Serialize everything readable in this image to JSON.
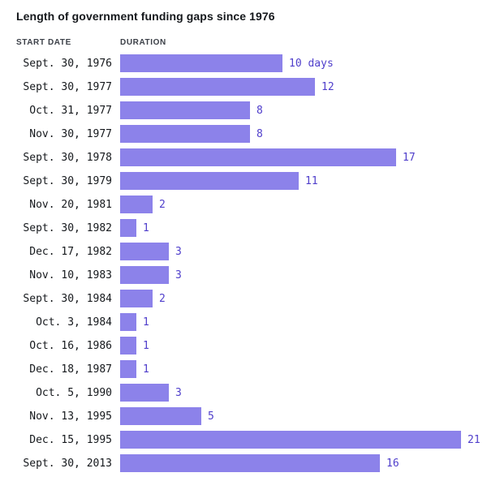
{
  "title": "Length of government funding gaps since 1976",
  "columns": {
    "start_date": "START DATE",
    "duration": "DURATION"
  },
  "colors": {
    "bar": "#8c82ea",
    "value_label": "#4f3ecb",
    "title_text": "#15181c",
    "header_text": "#3c4048",
    "date_text": "#15181c",
    "background": "#ffffff"
  },
  "chart_data": {
    "type": "bar",
    "orientation": "horizontal",
    "title": "Length of government funding gaps since 1976",
    "xlabel": "DURATION",
    "ylabel": "START DATE",
    "unit": "days",
    "xlim": [
      0,
      21.5
    ],
    "grid": false,
    "legend": false,
    "categories": [
      "Sept. 30, 1976",
      "Sept. 30, 1977",
      "Oct. 31, 1977",
      "Nov. 30, 1977",
      "Sept. 30, 1978",
      "Sept. 30, 1979",
      "Nov. 20, 1981",
      "Sept. 30, 1982",
      "Dec. 17, 1982",
      "Nov. 10, 1983",
      "Sept. 30, 1984",
      "Oct. 3, 1984",
      "Oct. 16, 1986",
      "Dec. 18, 1987",
      "Oct. 5, 1990",
      "Nov. 13, 1995",
      "Dec. 15, 1995",
      "Sept. 30, 2013"
    ],
    "values": [
      10,
      12,
      8,
      8,
      17,
      11,
      2,
      1,
      3,
      3,
      2,
      1,
      1,
      1,
      3,
      5,
      21,
      16
    ],
    "value_labels": [
      "10 days",
      "12",
      "8",
      "8",
      "17",
      "11",
      "2",
      "1",
      "3",
      "3",
      "2",
      "1",
      "1",
      "1",
      "3",
      "5",
      "21",
      "16"
    ]
  }
}
